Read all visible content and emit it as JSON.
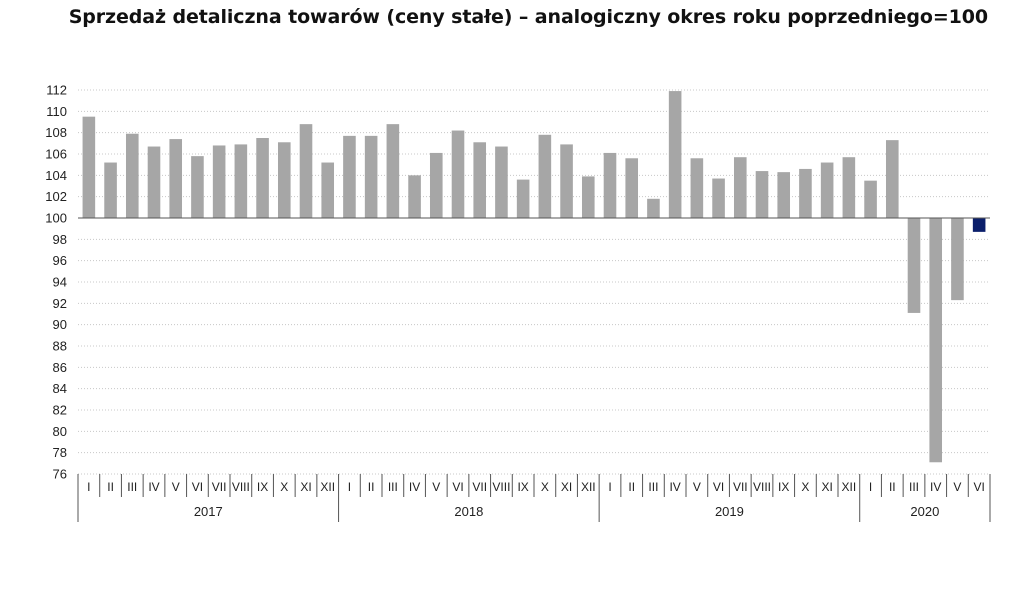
{
  "title": "Sprzedaż detaliczna towarów (ceny stałe) – analogiczny okres roku poprzedniego=100",
  "colors": {
    "bar": "#a6a6a6",
    "highlight": "#0b1f6b",
    "grid": "#c8c8c8",
    "axis": "#555555"
  },
  "chart_data": {
    "type": "bar",
    "title": "Sprzedaż detaliczna towarów (ceny stałe) – analogiczny okres roku poprzedniego=100",
    "baseline": 100,
    "ylim": [
      76,
      112
    ],
    "yticks": [
      112,
      110,
      108,
      106,
      104,
      102,
      100,
      98,
      96,
      94,
      92,
      90,
      88,
      86,
      84,
      82,
      80,
      78,
      76
    ],
    "grid": true,
    "categories": [
      "I",
      "II",
      "III",
      "IV",
      "V",
      "VI",
      "VII",
      "VIII",
      "IX",
      "X",
      "XI",
      "XII",
      "I",
      "II",
      "III",
      "IV",
      "V",
      "VI",
      "VII",
      "VIII",
      "IX",
      "X",
      "XI",
      "XII",
      "I",
      "II",
      "III",
      "IV",
      "V",
      "VI",
      "VII",
      "VIII",
      "IX",
      "X",
      "XI",
      "XII",
      "I",
      "II",
      "III",
      "IV",
      "V",
      "VI"
    ],
    "years": [
      {
        "label": "2017",
        "count": 12
      },
      {
        "label": "2018",
        "count": 12
      },
      {
        "label": "2019",
        "count": 12
      },
      {
        "label": "2020",
        "count": 6
      }
    ],
    "values": [
      109.5,
      105.2,
      107.9,
      106.7,
      107.4,
      105.8,
      106.8,
      106.9,
      107.5,
      107.1,
      108.8,
      105.2,
      107.7,
      107.7,
      108.8,
      104.0,
      106.1,
      108.2,
      107.1,
      106.7,
      103.6,
      107.8,
      106.9,
      103.9,
      106.1,
      105.6,
      101.8,
      111.9,
      105.6,
      103.7,
      105.7,
      104.4,
      104.3,
      104.6,
      105.2,
      105.7,
      103.5,
      107.3,
      91.1,
      77.1,
      92.3,
      98.7
    ],
    "highlight_index": 41
  }
}
